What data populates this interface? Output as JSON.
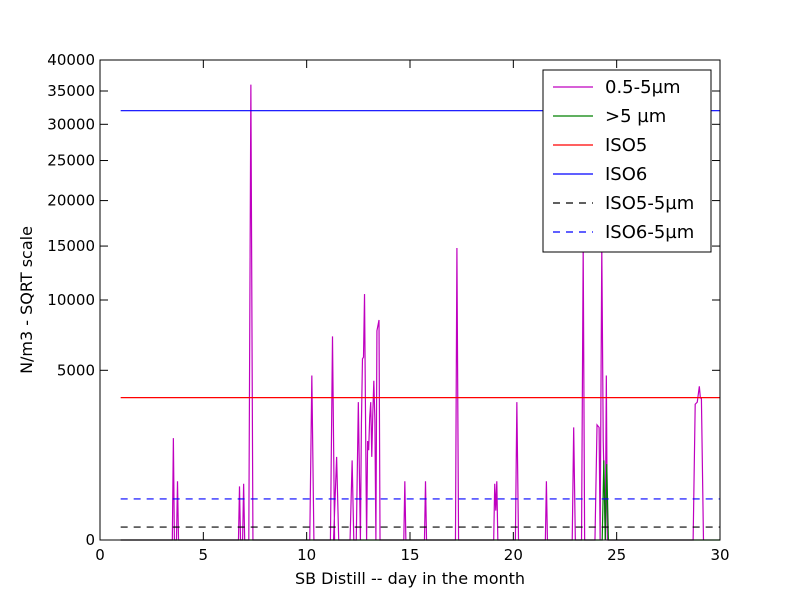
{
  "chart_data": {
    "type": "line",
    "title": "",
    "xlabel": "SB Distill -- day in the month",
    "ylabel": "N/m3 - SQRT scale",
    "xlim": [
      0,
      30
    ],
    "ylim": [
      0,
      40000
    ],
    "y_scale": "sqrt",
    "grid": false,
    "legend_position": "top-right",
    "x_ticks": [
      0,
      5,
      10,
      15,
      20,
      25,
      30
    ],
    "x_tick_labels": [
      "0",
      "5",
      "10",
      "15",
      "20",
      "25",
      "30"
    ],
    "y_ticks": [
      0,
      5000,
      10000,
      15000,
      20000,
      25000,
      30000,
      35000,
      40000
    ],
    "y_tick_labels": [
      "0",
      "5000",
      "10000",
      "15000",
      "20000",
      "25000",
      "30000",
      "35000",
      "40000"
    ],
    "series": [
      {
        "name": "0.5-5µm",
        "style": "solid",
        "color": "#bf00bf",
        "x": [
          1.0,
          3.5,
          3.55,
          3.6,
          3.7,
          3.75,
          3.8,
          6.7,
          6.75,
          6.8,
          6.9,
          6.95,
          7.0,
          7.2,
          7.3,
          7.4,
          10.15,
          10.25,
          10.35,
          11.15,
          11.25,
          11.35,
          11.3,
          11.45,
          11.55,
          12.1,
          12.2,
          12.28,
          12.4,
          12.5,
          12.6,
          12.65,
          12.7,
          12.75,
          12.8,
          12.85,
          12.9,
          12.95,
          13.0,
          13.05,
          13.1,
          13.15,
          13.2,
          13.25,
          13.3,
          13.35,
          13.4,
          13.5,
          13.55,
          13.6,
          14.7,
          14.75,
          14.8,
          15.7,
          15.75,
          15.8,
          17.2,
          17.27,
          17.35,
          19.05,
          19.1,
          19.15,
          19.2,
          19.25,
          20.1,
          20.17,
          20.25,
          21.55,
          21.6,
          21.65,
          22.85,
          22.92,
          23.0,
          23.3,
          23.38,
          23.45,
          23.95,
          24.05,
          24.15,
          24.2,
          24.28,
          24.35,
          24.45,
          24.5,
          24.55,
          28.7,
          28.8,
          28.9,
          29.0,
          29.05,
          29.1,
          29.2
        ],
        "y": [
          0,
          0,
          1800,
          0,
          0,
          600,
          0,
          0,
          500,
          0,
          0,
          550,
          0,
          0,
          36000,
          0,
          0,
          4700,
          0,
          0,
          7200,
          0,
          0,
          1200,
          0,
          0,
          1100,
          0,
          0,
          3300,
          0,
          2400,
          5700,
          5800,
          10500,
          2400,
          0,
          1700,
          1400,
          2600,
          3300,
          1200,
          2800,
          4400,
          2500,
          0,
          7600,
          8400,
          0,
          0,
          0,
          600,
          0,
          0,
          600,
          0,
          0,
          14800,
          0,
          0,
          550,
          150,
          600,
          0,
          0,
          3300,
          0,
          0,
          600,
          0,
          0,
          2200,
          0,
          0,
          15000,
          0,
          0,
          2300,
          2200,
          0,
          15000,
          1700,
          0,
          4700,
          0,
          0,
          3200,
          3300,
          4100,
          3500,
          3500,
          0
        ]
      },
      {
        "name": ">5 µm",
        "style": "solid",
        "color": "#008000",
        "x": [
          1.0,
          24.3,
          24.38,
          24.45,
          24.52,
          24.6,
          30.0
        ],
        "y": [
          0,
          0,
          1100,
          0,
          1000,
          0,
          0
        ]
      },
      {
        "name": "ISO5",
        "style": "solid",
        "color": "#ff0000",
        "x": [
          1,
          30
        ],
        "y": [
          3520,
          3520
        ]
      },
      {
        "name": "ISO6",
        "style": "solid",
        "color": "#0000ff",
        "x": [
          1,
          30
        ],
        "y": [
          32000,
          32000
        ]
      },
      {
        "name": "ISO5-5µm",
        "style": "dashed",
        "color": "#000000",
        "x": [
          1,
          30
        ],
        "y": [
          29,
          29
        ]
      },
      {
        "name": "ISO6-5µm",
        "style": "dashed",
        "color": "#0000ff",
        "x": [
          1,
          30
        ],
        "y": [
          293,
          293
        ]
      }
    ]
  }
}
